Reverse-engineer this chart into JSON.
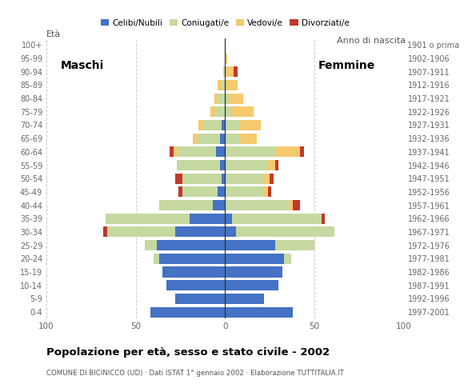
{
  "age_groups": [
    "0-4",
    "5-9",
    "10-14",
    "15-19",
    "20-24",
    "25-29",
    "30-34",
    "35-39",
    "40-44",
    "45-49",
    "50-54",
    "55-59",
    "60-64",
    "65-69",
    "70-74",
    "75-79",
    "80-84",
    "85-89",
    "90-94",
    "95-99",
    "100+"
  ],
  "birth_years": [
    "1997-2001",
    "1992-1996",
    "1987-1991",
    "1982-1986",
    "1977-1981",
    "1972-1976",
    "1967-1971",
    "1962-1966",
    "1957-1961",
    "1952-1956",
    "1947-1951",
    "1942-1946",
    "1937-1941",
    "1932-1936",
    "1927-1931",
    "1922-1926",
    "1917-1921",
    "1912-1916",
    "1907-1911",
    "1902-1906",
    "1901 o prima"
  ],
  "males": {
    "celibe": [
      42,
      28,
      33,
      35,
      37,
      38,
      28,
      20,
      7,
      4,
      2,
      3,
      5,
      3,
      2,
      0,
      0,
      0,
      0,
      0,
      0
    ],
    "coniugato": [
      0,
      0,
      0,
      0,
      3,
      7,
      38,
      47,
      30,
      20,
      22,
      24,
      22,
      13,
      10,
      5,
      4,
      2,
      1,
      0,
      0
    ],
    "vedovo": [
      0,
      0,
      0,
      0,
      0,
      0,
      0,
      0,
      0,
      0,
      0,
      0,
      2,
      2,
      3,
      3,
      2,
      2,
      0,
      0,
      0
    ],
    "divorziato": [
      0,
      0,
      0,
      0,
      0,
      0,
      2,
      0,
      0,
      2,
      4,
      0,
      2,
      0,
      0,
      0,
      0,
      0,
      0,
      0,
      0
    ]
  },
  "females": {
    "celibe": [
      38,
      22,
      30,
      32,
      33,
      28,
      6,
      4,
      0,
      0,
      0,
      0,
      0,
      0,
      0,
      0,
      0,
      0,
      0,
      0,
      0
    ],
    "coniugato": [
      0,
      0,
      0,
      0,
      4,
      22,
      55,
      50,
      36,
      22,
      22,
      24,
      28,
      8,
      8,
      4,
      2,
      0,
      0,
      0,
      0
    ],
    "vedovo": [
      0,
      0,
      0,
      0,
      0,
      0,
      0,
      0,
      2,
      2,
      3,
      4,
      14,
      10,
      12,
      12,
      8,
      7,
      5,
      1,
      0
    ],
    "divorziato": [
      0,
      0,
      0,
      0,
      0,
      0,
      0,
      2,
      4,
      2,
      2,
      2,
      2,
      0,
      0,
      0,
      0,
      0,
      2,
      0,
      0
    ]
  },
  "colors": {
    "celibe": "#4472c4",
    "coniugato": "#c5d9a0",
    "vedovo": "#f5c96e",
    "divorziato": "#c0392b"
  },
  "xlim": 100,
  "title": "Popolazione per età, sesso e stato civile - 2002",
  "subtitle": "COMUNE DI BICINICCO (UD) · Dati ISTAT 1° gennaio 2002 · Elaborazione TUTTITALIA.IT",
  "label_eta": "Età",
  "label_anno": "Anno di nascita",
  "label_maschi": "Maschi",
  "label_femmine": "Femmine",
  "legend_labels": [
    "Celibi/Nubili",
    "Coniugati/e",
    "Vedovi/e",
    "Divorziati/e"
  ]
}
